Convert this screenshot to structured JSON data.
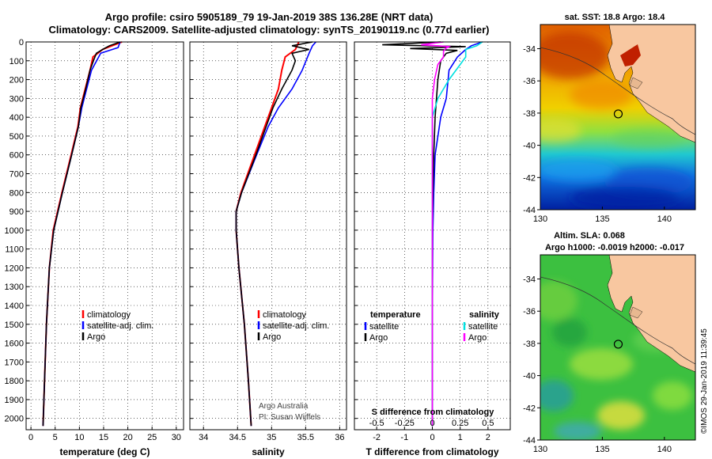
{
  "header": {
    "title_line1": "Argo profile: csiro 5905189_79 19-Jan-2019 38S 136.28E (NRT data)",
    "title_line2": "Climatology: CARS2009. Satellite-adjusted climatology: synTS_20190119.nc (0.77d earlier)"
  },
  "colors": {
    "climatology": "#ff0000",
    "satellite": "#0000ff",
    "argo": "#000000",
    "sat_diff_s": "#00e0e0",
    "argo_diff_s": "#ff00ff",
    "land": "#f8c7a0"
  },
  "depth_axis": {
    "ylim": [
      0,
      2060
    ],
    "ticks": [
      0,
      100,
      200,
      300,
      400,
      500,
      600,
      700,
      800,
      900,
      1000,
      1100,
      1200,
      1300,
      1400,
      1500,
      1600,
      1700,
      1800,
      1900,
      2000
    ]
  },
  "chart_data": [
    {
      "type": "line",
      "id": "temperature",
      "xlabel": "temperature (deg C)",
      "xlim": [
        -1,
        31.5
      ],
      "xticks": [
        0,
        5,
        10,
        15,
        20,
        25,
        30
      ],
      "xtick_labels": [
        "0",
        "5",
        "10",
        "15",
        "20",
        "25",
        "30"
      ],
      "legend": [
        "climatology",
        "satellite-adj. clim.",
        "Argo"
      ],
      "series": [
        {
          "name": "climatology",
          "color_key": "climatology",
          "depth": [
            0,
            40,
            80,
            150,
            250,
            350,
            450,
            600,
            800,
            1000,
            1200,
            1500,
            1800,
            2040
          ],
          "values": [
            18.8,
            14.8,
            12.8,
            12.2,
            11.2,
            10.2,
            9.7,
            8.3,
            6.4,
            4.6,
            3.8,
            3.2,
            2.8,
            2.5
          ]
        },
        {
          "name": "satellite-adj. clim.",
          "color_key": "satellite",
          "depth": [
            0,
            30,
            60,
            150,
            250,
            350,
            450,
            600,
            800,
            1000,
            1200,
            1500,
            1800,
            2040
          ],
          "values": [
            18.4,
            18.0,
            14.4,
            12.5,
            11.5,
            10.5,
            9.8,
            8.4,
            6.5,
            4.7,
            3.8,
            3.2,
            2.8,
            2.5
          ]
        },
        {
          "name": "Argo",
          "color_key": "argo",
          "depth": [
            0,
            20,
            40,
            60,
            100,
            150,
            250,
            350,
            450,
            600,
            800,
            1000,
            1200,
            1500,
            1800,
            2040
          ],
          "values": [
            18.4,
            16.2,
            14.8,
            13.5,
            12.9,
            12.2,
            11.3,
            10.3,
            9.8,
            8.4,
            6.5,
            4.7,
            3.8,
            3.2,
            2.8,
            2.5
          ]
        }
      ]
    },
    {
      "type": "line",
      "id": "salinity",
      "xlabel": "salinity",
      "xlim": [
        33.8,
        36.1
      ],
      "xticks": [
        34,
        34.5,
        35,
        35.5,
        36
      ],
      "xtick_labels": [
        "34",
        "34.5",
        "35",
        "35.5",
        "36"
      ],
      "legend": [
        "climatology",
        "satellite-adj. clim.",
        "Argo"
      ],
      "annotations": [
        "Argo Australia",
        "PI: Susan Wijffels"
      ],
      "series": [
        {
          "name": "climatology",
          "color_key": "climatology",
          "depth": [
            0,
            40,
            80,
            150,
            250,
            350,
            450,
            600,
            800,
            900,
            1000,
            1200,
            1500,
            1800,
            2040
          ],
          "values": [
            35.4,
            35.35,
            35.2,
            35.15,
            35.1,
            35.0,
            34.9,
            34.75,
            34.55,
            34.48,
            34.48,
            34.52,
            34.6,
            34.66,
            34.7
          ]
        },
        {
          "name": "satellite-adj. clim.",
          "color_key": "satellite",
          "depth": [
            0,
            20,
            60,
            150,
            250,
            350,
            450,
            600,
            800,
            900,
            1000,
            1200,
            1500,
            1800,
            2040
          ],
          "values": [
            35.65,
            35.6,
            35.55,
            35.45,
            35.3,
            35.1,
            34.95,
            34.78,
            34.56,
            34.48,
            34.48,
            34.52,
            34.6,
            34.66,
            34.7
          ]
        },
        {
          "name": "Argo",
          "color_key": "argo",
          "depth": [
            0,
            20,
            40,
            60,
            100,
            150,
            250,
            350,
            450,
            600,
            800,
            900,
            1000,
            1200,
            1500,
            1800,
            2040
          ],
          "values": [
            35.6,
            35.3,
            35.55,
            35.3,
            35.35,
            35.3,
            35.15,
            35.02,
            34.92,
            34.77,
            34.56,
            34.48,
            34.48,
            34.52,
            34.6,
            34.66,
            34.7
          ]
        }
      ]
    },
    {
      "type": "line",
      "id": "differences",
      "xlabel": "T difference from climatology",
      "xlim": [
        -2.8,
        2.8
      ],
      "xticks": [
        -2,
        -1,
        0,
        1,
        2
      ],
      "xtick_labels": [
        "-2",
        "-1",
        "0",
        "1",
        "2"
      ],
      "secondary_axis_label": "S difference from climatology",
      "secondary_ticks": [
        -0.5,
        -0.25,
        0,
        0.25,
        0.5
      ],
      "secondary_tick_labels": [
        "-0.5",
        "-0.25",
        "0",
        "0.25",
        "0.5"
      ],
      "legend_left_title": "temperature",
      "legend_right_title": "salinity",
      "legend_left": [
        "satellite",
        "Argo"
      ],
      "legend_right": [
        "satellite",
        "Argo"
      ],
      "series": [
        {
          "name": "T satellite",
          "color_key": "satellite",
          "depth": [
            0,
            20,
            40,
            80,
            150,
            300,
            400,
            600,
            800,
            1000,
            1500,
            2040
          ],
          "values": [
            1.8,
            1.4,
            1.2,
            0.9,
            0.6,
            0.5,
            0.3,
            0.1,
            0.05,
            0.02,
            0.0,
            0.0
          ]
        },
        {
          "name": "T Argo",
          "color_key": "argo",
          "depth": [
            0,
            15,
            25,
            35,
            45,
            60,
            100,
            200,
            400,
            600,
            800,
            1000,
            1500,
            2040
          ],
          "values": [
            0.3,
            -1.8,
            1.2,
            -0.8,
            0.9,
            0.5,
            0.3,
            0.2,
            0.1,
            0.05,
            0.02,
            0.0,
            0.0,
            0.0
          ]
        },
        {
          "name": "S satellite",
          "color_key": "sat_diff_s",
          "depth": [
            0,
            20,
            40,
            80,
            120,
            200,
            300,
            400,
            600,
            800,
            1000,
            1500,
            2040
          ],
          "values": [
            0.45,
            0.4,
            0.3,
            0.3,
            0.25,
            0.15,
            0.05,
            0.0,
            0.0,
            0.0,
            0.0,
            0.0,
            0.0
          ]
        },
        {
          "name": "S Argo",
          "color_key": "argo_diff_s",
          "depth": [
            0,
            15,
            25,
            35,
            50,
            80,
            120,
            200,
            300,
            600,
            1000,
            1500,
            2040
          ],
          "values": [
            0.1,
            -0.1,
            0.15,
            0.12,
            0.1,
            0.1,
            0.05,
            0.02,
            0.0,
            0.0,
            0.0,
            0.0,
            0.0
          ]
        }
      ]
    }
  ],
  "map_top": {
    "title": "sat. SST: 18.8  Argo: 18.4",
    "xticks": [
      130,
      135,
      140
    ],
    "yticks": [
      -34,
      -36,
      -38,
      -40,
      -42,
      -44
    ],
    "xtick_labels": [
      "130",
      "135",
      "140"
    ],
    "ytick_labels": [
      "-34",
      "-36",
      "-38",
      "-40",
      "-42",
      "-44"
    ],
    "xlim": [
      130,
      142.5
    ],
    "ylim": [
      -44,
      -32.5
    ],
    "float_position": [
      136.28,
      -38.05
    ]
  },
  "map_bottom": {
    "title_line1": "Altim. SLA: 0.068",
    "title_line2": "Argo h1000: -0.0019 h2000: -0.017",
    "xticks": [
      130,
      135,
      140
    ],
    "yticks": [
      -34,
      -36,
      -38,
      -40,
      -42,
      -44
    ],
    "xtick_labels": [
      "130",
      "135",
      "140"
    ],
    "ytick_labels": [
      "-34",
      "-36",
      "-38",
      "-40",
      "-42",
      "-44"
    ],
    "xlim": [
      130,
      142.5
    ],
    "ylim": [
      -44,
      -32.5
    ],
    "float_position": [
      136.28,
      -38.05
    ]
  },
  "credit": "©IMOS 29-Jan-2019 11:39:45"
}
